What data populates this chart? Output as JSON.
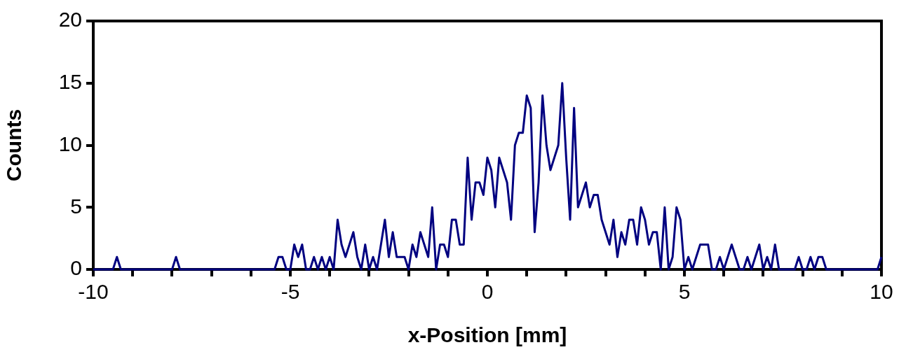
{
  "chart_data": {
    "type": "line",
    "xlabel": "x-Position [mm]",
    "ylabel": "Counts",
    "x": [
      -10,
      -9.9,
      -9.8,
      -9.7,
      -9.6,
      -9.5,
      -9.4,
      -9.3,
      -9.2,
      -9.1,
      -9,
      -8.9,
      -8.8,
      -8.7,
      -8.6,
      -8.5,
      -8.4,
      -8.3,
      -8.2,
      -8.1,
      -8,
      -7.9,
      -7.8,
      -7.7,
      -7.6,
      -7.5,
      -7.4,
      -7.3,
      -7.2,
      -7.1,
      -7,
      -6.9,
      -6.8,
      -6.7,
      -6.6,
      -6.5,
      -6.4,
      -6.3,
      -6.2,
      -6.1,
      -6,
      -5.9,
      -5.8,
      -5.7,
      -5.6,
      -5.5,
      -5.4,
      -5.3,
      -5.2,
      -5.1,
      -5,
      -4.9,
      -4.8,
      -4.7,
      -4.6,
      -4.5,
      -4.4,
      -4.3,
      -4.2,
      -4.1,
      -4,
      -3.9,
      -3.8,
      -3.7,
      -3.6,
      -3.5,
      -3.4,
      -3.3,
      -3.2,
      -3.1,
      -3,
      -2.9,
      -2.8,
      -2.7,
      -2.6,
      -2.5,
      -2.4,
      -2.3,
      -2.2,
      -2.1,
      -2,
      -1.9,
      -1.8,
      -1.7,
      -1.6,
      -1.5,
      -1.4,
      -1.3,
      -1.2,
      -1.1,
      -1,
      -0.9,
      -0.8,
      -0.7,
      -0.6,
      -0.5,
      -0.4,
      -0.3,
      -0.2,
      -0.1,
      0,
      0.1,
      0.2,
      0.3,
      0.4,
      0.5,
      0.6,
      0.7,
      0.8,
      0.9,
      1,
      1.1,
      1.2,
      1.3,
      1.4,
      1.5,
      1.6,
      1.7,
      1.8,
      1.9,
      2,
      2.1,
      2.2,
      2.3,
      2.4,
      2.5,
      2.6,
      2.7,
      2.8,
      2.9,
      3,
      3.1,
      3.2,
      3.3,
      3.4,
      3.5,
      3.6,
      3.7,
      3.8,
      3.9,
      4,
      4.1,
      4.2,
      4.3,
      4.4,
      4.5,
      4.6,
      4.7,
      4.8,
      4.9,
      5,
      5.1,
      5.2,
      5.3,
      5.4,
      5.5,
      5.6,
      5.7,
      5.8,
      5.9,
      6,
      6.1,
      6.2,
      6.3,
      6.4,
      6.5,
      6.6,
      6.7,
      6.8,
      6.9,
      7,
      7.1,
      7.2,
      7.3,
      7.4,
      7.5,
      7.6,
      7.7,
      7.8,
      7.9,
      8,
      8.1,
      8.2,
      8.3,
      8.4,
      8.5,
      8.6,
      8.7,
      8.8,
      8.9,
      9,
      9.1,
      9.2,
      9.3,
      9.4,
      9.5,
      9.6,
      9.7,
      9.8,
      9.9,
      10
    ],
    "series": [
      {
        "color": "#000080",
        "values": [
          0,
          0,
          0,
          0,
          0,
          0,
          1,
          0,
          0,
          0,
          0,
          0,
          0,
          0,
          0,
          0,
          0,
          0,
          0,
          0,
          0,
          1,
          0,
          0,
          0,
          0,
          0,
          0,
          0,
          0,
          0,
          0,
          0,
          0,
          0,
          0,
          0,
          0,
          0,
          0,
          0,
          0,
          0,
          0,
          0,
          0,
          0,
          1,
          1,
          0,
          0,
          2,
          1,
          2,
          0,
          0,
          1,
          0,
          1,
          0,
          1,
          0,
          4,
          2,
          1,
          2,
          3,
          1,
          0,
          2,
          0,
          1,
          0,
          2,
          4,
          1,
          3,
          1,
          1,
          1,
          0,
          2,
          1,
          3,
          2,
          1,
          5,
          0,
          2,
          2,
          1,
          4,
          4,
          2,
          2,
          9,
          4,
          7,
          7,
          6,
          9,
          8,
          5,
          9,
          8,
          7,
          4,
          10,
          11,
          11,
          14,
          13,
          3,
          7,
          14,
          10,
          8,
          9,
          10,
          15,
          9,
          4,
          13,
          5,
          6,
          7,
          5,
          6,
          6,
          4,
          3,
          2,
          4,
          1,
          3,
          2,
          4,
          4,
          2,
          5,
          4,
          2,
          3,
          3,
          0,
          5,
          0,
          1,
          5,
          4,
          0,
          1,
          0,
          1,
          2,
          2,
          2,
          0,
          0,
          1,
          0,
          1,
          2,
          1,
          0,
          0,
          1,
          0,
          1,
          2,
          0,
          1,
          0,
          2,
          0,
          0,
          0,
          0,
          0,
          1,
          0,
          0,
          1,
          0,
          1,
          1,
          0,
          0,
          0,
          0,
          0,
          0,
          0,
          0,
          0,
          0,
          0,
          0,
          0,
          0,
          1
        ]
      }
    ],
    "xlim": [
      -10,
      10
    ],
    "xticks": [
      -10,
      {
        "value": -9,
        "label": null
      },
      {
        "value": -8,
        "label": null
      },
      {
        "value": -7,
        "label": null
      },
      {
        "value": -6,
        "label": null
      },
      -5,
      {
        "value": -4,
        "label": null
      },
      {
        "value": -3,
        "label": null
      },
      {
        "value": -2,
        "label": null
      },
      {
        "value": -1,
        "label": null
      },
      0,
      {
        "value": 1,
        "label": null
      },
      {
        "value": 2,
        "label": null
      },
      {
        "value": 3,
        "label": null
      },
      {
        "value": 4,
        "label": null
      },
      5,
      {
        "value": 6,
        "label": null
      },
      {
        "value": 7,
        "label": null
      },
      {
        "value": 8,
        "label": null
      },
      {
        "value": 9,
        "label": null
      },
      10
    ],
    "ylim": [
      0,
      20
    ],
    "yticks": [
      0,
      5,
      10,
      15,
      20
    ],
    "grid": false,
    "legend": false,
    "marker": "none",
    "line_style": "solid"
  }
}
